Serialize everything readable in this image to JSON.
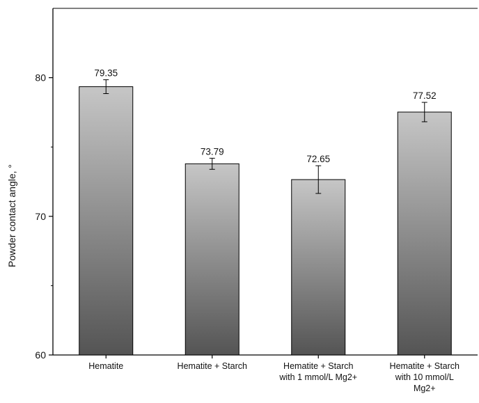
{
  "chart_data": {
    "type": "bar",
    "title": "",
    "xlabel": "",
    "ylabel": "Powder contact angle, °",
    "ylim": [
      60,
      85
    ],
    "yticks": [
      60,
      70,
      80
    ],
    "grid": false,
    "legend": "none",
    "categories": [
      [
        "Hematite"
      ],
      [
        "Hematite + Starch"
      ],
      [
        "Hematite + Starch",
        "with 1 mmol/L Mg2+"
      ],
      [
        "Hematite + Starch",
        "with 10 mmol/L",
        "Mg2+"
      ]
    ],
    "values": [
      79.35,
      73.79,
      72.65,
      77.52
    ],
    "value_labels": [
      "79.35",
      "73.79",
      "72.65",
      "77.52"
    ],
    "error": [
      0.5,
      0.4,
      1.0,
      0.7
    ],
    "colors": {
      "bar_top": "#c6c6c6",
      "bar_bottom": "#545454",
      "axis": "#000000"
    }
  }
}
